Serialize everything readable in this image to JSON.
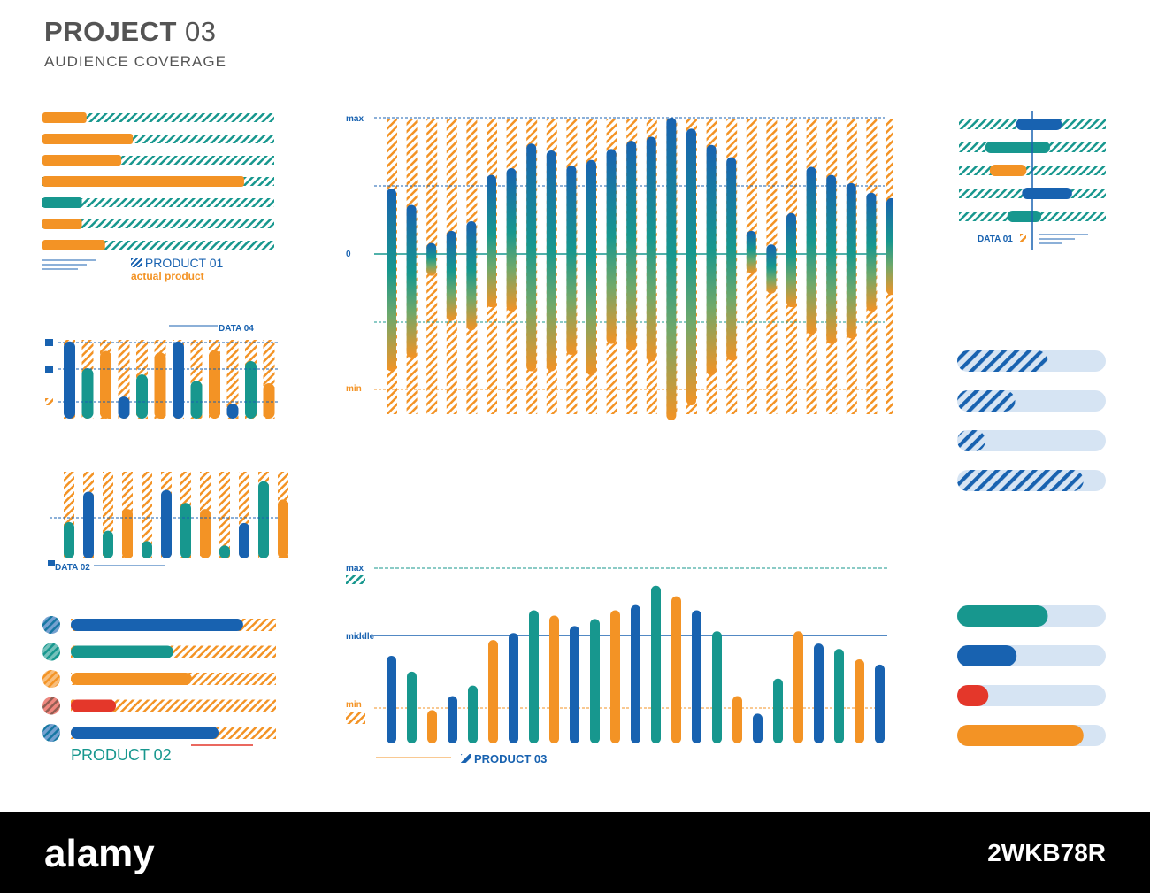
{
  "header": {
    "title": "PROJECT",
    "title_num": "03",
    "subtitle": "AUDIENCE COVERAGE"
  },
  "colors": {
    "orange": "#F39325",
    "teal": "#17978E",
    "blue": "#1862B0",
    "red": "#E4372A",
    "lightblue": "#D6E4F3",
    "text": "#545454"
  },
  "product01": {
    "label": "PRODUCT 01",
    "sublabel": "actual product"
  },
  "data04": {
    "label": "DATA 04"
  },
  "data02": {
    "label": "DATA 02"
  },
  "product02": {
    "label": "PRODUCT 02"
  },
  "product03": {
    "label": "PRODUCT 03"
  },
  "data01": {
    "label": "DATA 01"
  },
  "main_chart_labels": {
    "max": "max",
    "zero": "0",
    "min": "min"
  },
  "bottom_chart_labels": {
    "max": "max",
    "middle": "middle",
    "min": "min"
  },
  "footer": {
    "brand": "alamy",
    "code": "2WKB78R"
  },
  "chart_data": [
    {
      "id": "product01",
      "type": "bar",
      "orientation": "horizontal",
      "values": [
        0.19,
        0.39,
        0.34,
        0.87,
        0.17,
        0.17,
        0.27
      ],
      "colors": [
        "orange",
        "orange",
        "orange",
        "orange",
        "teal",
        "orange",
        "orange"
      ],
      "xlim": [
        0,
        1
      ]
    },
    {
      "id": "data04",
      "type": "bar",
      "values": [
        0.98,
        0.64,
        0.86,
        0.28,
        0.56,
        0.84,
        0.98,
        0.48,
        0.87,
        0.19,
        0.73,
        0.45
      ],
      "colors": [
        "blue",
        "teal",
        "orange",
        "blue",
        "teal",
        "orange",
        "blue",
        "teal",
        "orange",
        "blue",
        "teal",
        "orange"
      ],
      "ylim": [
        0,
        1
      ]
    },
    {
      "id": "data02",
      "type": "bar",
      "values": [
        0.42,
        0.77,
        0.32,
        0.57,
        0.2,
        0.79,
        0.64,
        0.57,
        0.15,
        0.41,
        0.89,
        0.68
      ],
      "colors": [
        "teal",
        "blue",
        "teal",
        "orange",
        "teal",
        "blue",
        "teal",
        "orange",
        "teal",
        "blue",
        "teal",
        "orange"
      ],
      "ylim": [
        0,
        1
      ]
    },
    {
      "id": "main",
      "type": "bar",
      "y_ticks": [
        "max",
        "0",
        "min"
      ],
      "ylim": [
        -1,
        1
      ],
      "bars": [
        {
          "top": 0.48,
          "bottom": -0.86
        },
        {
          "top": 0.36,
          "bottom": -0.76
        },
        {
          "top": 0.08,
          "bottom": -0.16
        },
        {
          "top": 0.17,
          "bottom": -0.49
        },
        {
          "top": 0.24,
          "bottom": -0.56
        },
        {
          "top": 0.58,
          "bottom": -0.39
        },
        {
          "top": 0.63,
          "bottom": -0.42
        },
        {
          "top": 0.81,
          "bottom": -0.86
        },
        {
          "top": 0.76,
          "bottom": -0.86
        },
        {
          "top": 0.65,
          "bottom": -0.74
        },
        {
          "top": 0.69,
          "bottom": -0.89
        },
        {
          "top": 0.77,
          "bottom": -0.66
        },
        {
          "top": 0.83,
          "bottom": -0.71
        },
        {
          "top": 0.86,
          "bottom": -0.79
        },
        {
          "top": 1.0,
          "bottom": -1.22
        },
        {
          "top": 0.92,
          "bottom": -1.11
        },
        {
          "top": 0.8,
          "bottom": -0.89
        },
        {
          "top": 0.71,
          "bottom": -0.78
        },
        {
          "top": 0.17,
          "bottom": -0.14
        },
        {
          "top": 0.07,
          "bottom": -0.29
        },
        {
          "top": 0.3,
          "bottom": -0.39
        },
        {
          "top": 0.64,
          "bottom": -0.59
        },
        {
          "top": 0.58,
          "bottom": -0.66
        },
        {
          "top": 0.52,
          "bottom": -0.62
        },
        {
          "top": 0.45,
          "bottom": -0.42
        },
        {
          "top": 0.41,
          "bottom": -0.3
        }
      ]
    },
    {
      "id": "product03",
      "type": "bar",
      "y_ticks": [
        "max",
        "middle",
        "min"
      ],
      "values": [
        0.5,
        0.41,
        0.19,
        0.27,
        0.33,
        0.59,
        0.63,
        0.76,
        0.73,
        0.67,
        0.71,
        0.76,
        0.79,
        0.9,
        0.84,
        0.76,
        0.64,
        0.27,
        0.17,
        0.37,
        0.64,
        0.57,
        0.54,
        0.48,
        0.45
      ],
      "colors": [
        "blue",
        "teal",
        "orange",
        "blue",
        "teal",
        "orange",
        "blue",
        "teal",
        "orange",
        "blue",
        "teal",
        "orange",
        "blue",
        "teal",
        "orange",
        "blue",
        "teal",
        "orange",
        "blue",
        "teal",
        "orange",
        "blue",
        "teal",
        "orange",
        "blue"
      ],
      "ylim": [
        0,
        1
      ]
    },
    {
      "id": "product02",
      "type": "bar",
      "orientation": "horizontal",
      "values": [
        0.84,
        0.5,
        0.59,
        0.22,
        0.72
      ],
      "colors": [
        "blue",
        "teal",
        "orange",
        "red",
        "blue"
      ],
      "xlim": [
        0,
        1
      ]
    },
    {
      "id": "data01",
      "type": "bar",
      "orientation": "horizontal",
      "ranges": [
        [
          0.39,
          0.7
        ],
        [
          0.18,
          0.62
        ],
        [
          0.21,
          0.46
        ],
        [
          0.43,
          0.77
        ],
        [
          0.33,
          0.56
        ]
      ],
      "colors": [
        "blue",
        "teal",
        "orange",
        "blue",
        "teal"
      ],
      "xlim": [
        0,
        1
      ]
    },
    {
      "id": "hatched_progress",
      "type": "bar",
      "orientation": "horizontal",
      "values": [
        0.61,
        0.39,
        0.19,
        0.85
      ],
      "xlim": [
        0,
        1
      ]
    },
    {
      "id": "solid_progress",
      "type": "bar",
      "orientation": "horizontal",
      "values": [
        0.61,
        0.4,
        0.21,
        0.85
      ],
      "colors": [
        "teal",
        "blue",
        "red",
        "orange"
      ],
      "xlim": [
        0,
        1
      ]
    }
  ]
}
